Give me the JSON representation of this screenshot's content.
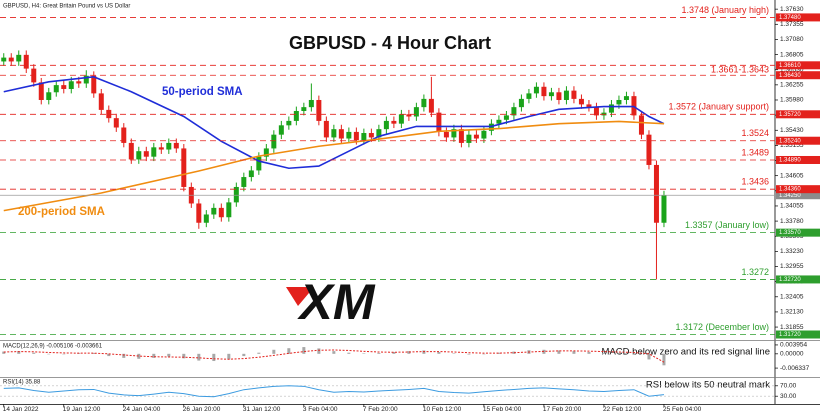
{
  "chart_data": [
    {
      "type": "candlestick",
      "info": "GBPUSD, H4:  Great Britain Pound vs US Dollar",
      "title": "GBPUSD - 4 Hour Chart",
      "logo": "XM",
      "up_color": "#1aa31a",
      "down_color": "#e3211c",
      "xlim": [
        -0.5,
        102.8
      ],
      "ylim": [
        1.3162,
        1.3776
      ],
      "yticks": [
        {
          "value": 1.3763,
          "label": "1.37630"
        },
        {
          "value": 1.37355,
          "label": "1.37355"
        },
        {
          "value": 1.3708,
          "label": "1.37080"
        },
        {
          "value": 1.36805,
          "label": "1.36805"
        },
        {
          "value": 1.3653,
          "label": "1.36530"
        },
        {
          "value": 1.36255,
          "label": "1.36255"
        },
        {
          "value": 1.3598,
          "label": "1.35980"
        },
        {
          "value": 1.35705,
          "label": "1.35705"
        },
        {
          "value": 1.3543,
          "label": "1.35430"
        },
        {
          "value": 1.35155,
          "label": "1.35155"
        },
        {
          "value": 1.3488,
          "label": "1.34880"
        },
        {
          "value": 1.34605,
          "label": "1.34605"
        },
        {
          "value": 1.3433,
          "label": "1.34330"
        },
        {
          "value": 1.34055,
          "label": "1.34055"
        },
        {
          "value": 1.3378,
          "label": "1.33780"
        },
        {
          "value": 1.33505,
          "label": "1.33505"
        },
        {
          "value": 1.3323,
          "label": "1.33230"
        },
        {
          "value": 1.32955,
          "label": "1.32955"
        },
        {
          "value": 1.3268,
          "label": "1.32680"
        },
        {
          "value": 1.32405,
          "label": "1.32405"
        },
        {
          "value": 1.3213,
          "label": "1.32130"
        },
        {
          "value": 1.31855,
          "label": "1.31855"
        }
      ],
      "open": [
        1.3668,
        1.3675,
        1.3668,
        1.368,
        1.3655,
        1.363,
        1.3598,
        1.3612,
        1.3625,
        1.3618,
        1.3632,
        1.3628,
        1.3642,
        1.361,
        1.358,
        1.3565,
        1.3548,
        1.352,
        1.349,
        1.3505,
        1.3495,
        1.3512,
        1.3508,
        1.352,
        1.351,
        1.344,
        1.341,
        1.3375,
        1.339,
        1.3402,
        1.3385,
        1.3412,
        1.344,
        1.3458,
        1.347,
        1.3495,
        1.351,
        1.3535,
        1.3552,
        1.356,
        1.3578,
        1.3585,
        1.3598,
        1.356,
        1.353,
        1.3545,
        1.3528,
        1.354,
        1.3525,
        1.3538,
        1.353,
        1.3545,
        1.356,
        1.3555,
        1.3572,
        1.3568,
        1.3585,
        1.36,
        1.3575,
        1.354,
        1.353,
        1.3545,
        1.352,
        1.3535,
        1.3528,
        1.3542,
        1.3555,
        1.3562,
        1.357,
        1.3585,
        1.36,
        1.361,
        1.3622,
        1.3605,
        1.3612,
        1.3598,
        1.3615,
        1.36,
        1.359,
        1.3585,
        1.357,
        1.3575,
        1.359,
        1.3598,
        1.3605,
        1.357,
        1.3535,
        1.348,
        1.3375
      ],
      "high": [
        1.3683,
        1.3683,
        1.3688,
        1.3688,
        1.3663,
        1.3638,
        1.362,
        1.3633,
        1.3633,
        1.364,
        1.364,
        1.3652,
        1.365,
        1.3618,
        1.3588,
        1.3573,
        1.3556,
        1.3528,
        1.3513,
        1.3513,
        1.352,
        1.352,
        1.3528,
        1.3528,
        1.3518,
        1.3448,
        1.3418,
        1.3398,
        1.341,
        1.341,
        1.342,
        1.3448,
        1.3466,
        1.3478,
        1.3503,
        1.3518,
        1.3543,
        1.356,
        1.3568,
        1.3586,
        1.3593,
        1.3628,
        1.3606,
        1.3568,
        1.3553,
        1.3553,
        1.3548,
        1.3548,
        1.3546,
        1.3546,
        1.3553,
        1.3568,
        1.3568,
        1.358,
        1.358,
        1.3593,
        1.3608,
        1.364,
        1.3583,
        1.3548,
        1.3553,
        1.3553,
        1.3543,
        1.3543,
        1.355,
        1.3563,
        1.357,
        1.3578,
        1.3593,
        1.3608,
        1.3618,
        1.363,
        1.363,
        1.362,
        1.362,
        1.3623,
        1.3623,
        1.3608,
        1.3598,
        1.3593,
        1.3583,
        1.3598,
        1.3606,
        1.3613,
        1.3613,
        1.3578,
        1.3543,
        1.3488,
        1.3433
      ],
      "low": [
        1.366,
        1.366,
        1.366,
        1.3647,
        1.3622,
        1.359,
        1.359,
        1.3604,
        1.361,
        1.361,
        1.362,
        1.362,
        1.3602,
        1.3572,
        1.3557,
        1.354,
        1.3512,
        1.3482,
        1.3482,
        1.3487,
        1.3487,
        1.35,
        1.35,
        1.3502,
        1.3432,
        1.3402,
        1.3364,
        1.3367,
        1.3382,
        1.3377,
        1.3377,
        1.3404,
        1.3432,
        1.345,
        1.3462,
        1.3487,
        1.3502,
        1.3527,
        1.3544,
        1.3552,
        1.357,
        1.3577,
        1.3552,
        1.3522,
        1.3522,
        1.352,
        1.352,
        1.3517,
        1.3517,
        1.3522,
        1.3522,
        1.3537,
        1.3547,
        1.3547,
        1.356,
        1.356,
        1.3577,
        1.3567,
        1.3532,
        1.3522,
        1.3522,
        1.3512,
        1.3512,
        1.352,
        1.352,
        1.3534,
        1.3547,
        1.3554,
        1.3562,
        1.3577,
        1.3592,
        1.3602,
        1.3597,
        1.3597,
        1.359,
        1.359,
        1.3592,
        1.3582,
        1.3577,
        1.3562,
        1.3562,
        1.3567,
        1.3582,
        1.359,
        1.3562,
        1.3527,
        1.3472,
        1.3272,
        1.3367
      ],
      "close": [
        1.3675,
        1.3668,
        1.368,
        1.3655,
        1.363,
        1.3598,
        1.3612,
        1.3625,
        1.3618,
        1.3632,
        1.3628,
        1.3642,
        1.361,
        1.358,
        1.3565,
        1.3548,
        1.352,
        1.349,
        1.3505,
        1.3495,
        1.3512,
        1.3508,
        1.352,
        1.351,
        1.344,
        1.341,
        1.3375,
        1.339,
        1.3402,
        1.3385,
        1.3412,
        1.344,
        1.3458,
        1.347,
        1.3495,
        1.351,
        1.3535,
        1.3552,
        1.356,
        1.3578,
        1.3585,
        1.3598,
        1.356,
        1.353,
        1.3545,
        1.3528,
        1.354,
        1.3525,
        1.3538,
        1.353,
        1.3545,
        1.356,
        1.3555,
        1.3572,
        1.3568,
        1.3585,
        1.36,
        1.3575,
        1.354,
        1.353,
        1.3545,
        1.352,
        1.3535,
        1.3528,
        1.3542,
        1.3555,
        1.3562,
        1.357,
        1.3585,
        1.36,
        1.361,
        1.3622,
        1.3605,
        1.3612,
        1.3598,
        1.3615,
        1.36,
        1.359,
        1.3585,
        1.357,
        1.3575,
        1.359,
        1.3598,
        1.3605,
        1.357,
        1.3535,
        1.348,
        1.3375,
        1.3425
      ],
      "series": [
        {
          "name": "50-period SMA",
          "color": "#1f2dd8",
          "x": [
            0,
            6,
            12,
            17,
            24,
            29,
            34,
            38,
            42,
            46,
            50,
            55,
            59,
            65,
            70,
            74,
            80,
            84,
            86,
            88
          ],
          "values": [
            1.3613,
            1.3631,
            1.364,
            1.3613,
            1.3568,
            1.3523,
            1.3487,
            1.3474,
            1.3478,
            1.3505,
            1.3532,
            1.355,
            1.355,
            1.355,
            1.3568,
            1.3581,
            1.3586,
            1.3586,
            1.3568,
            1.3555
          ]
        },
        {
          "name": "200-period SMA",
          "color": "#f08c10",
          "x": [
            0,
            13,
            26,
            34,
            42,
            50,
            58,
            66,
            74,
            82,
            88
          ],
          "values": [
            1.3397,
            1.3429,
            1.3469,
            1.3496,
            1.3514,
            1.3527,
            1.3541,
            1.3546,
            1.3555,
            1.3559,
            1.3555
          ]
        }
      ],
      "levels": [
        {
          "label": "1.3748 (January high)",
          "color": "#e3211c",
          "values": [
            1.3748
          ],
          "tags": [
            "1.37480"
          ]
        },
        {
          "label": "1.3661-1.3643",
          "color": "#e3211c",
          "values": [
            1.3661,
            1.3643
          ],
          "tags": [
            "1.36610",
            "1.36430"
          ]
        },
        {
          "label": "1.3572 (January support)",
          "color": "#e3211c",
          "values": [
            1.3572
          ],
          "tags": [
            "1.35720"
          ]
        },
        {
          "label": "1.3524",
          "color": "#e3211c",
          "values": [
            1.3524
          ],
          "tags": [
            "1.35240"
          ]
        },
        {
          "label": "1.3489",
          "color": "#e3211c",
          "values": [
            1.3489
          ],
          "tags": [
            "1.34890"
          ]
        },
        {
          "label": "1.3436",
          "color": "#e3211c",
          "values": [
            1.3436
          ],
          "tags": [
            "1.34360"
          ]
        },
        {
          "label": "1.3357 (January low)",
          "color": "#2e9e2e",
          "values": [
            1.3357
          ],
          "tags": [
            "1.33570"
          ]
        },
        {
          "label": "1.3272",
          "color": "#2e9e2e",
          "values": [
            1.3272
          ],
          "tags": [
            "1.32720"
          ]
        },
        {
          "label": "1.3172 (December low)",
          "color": "#2e9e2e",
          "values": [
            1.3172
          ],
          "tags": [
            "1.31720"
          ]
        }
      ],
      "last_price": {
        "value": 1.3425,
        "label": "1.34250"
      }
    },
    {
      "type": "macd",
      "label": "MACD(12,26,9) -0.005106 -0.003661",
      "note": "MACD below zero and its red signal line",
      "histogram_color": "#a8a8a8",
      "signal_color": "#e3211c",
      "xlim": [
        -0.5,
        102.8
      ],
      "ylim": [
        -0.0103,
        0.0057
      ],
      "yticks": [
        0.003954,
        {
          "value": 0,
          "label": "0.00000"
        },
        -0.006337
      ],
      "x": [
        0,
        2,
        4,
        6,
        8,
        10,
        12,
        14,
        16,
        18,
        20,
        22,
        24,
        26,
        28,
        30,
        32,
        34,
        36,
        38,
        40,
        42,
        44,
        46,
        48,
        50,
        52,
        54,
        56,
        58,
        60,
        62,
        64,
        66,
        68,
        70,
        72,
        74,
        76,
        78,
        80,
        82,
        84,
        86,
        88
      ],
      "histogram": [
        0.001,
        0.0012,
        0.0005,
        -0.0002,
        0.0,
        0.0003,
        0.0004,
        -0.001,
        -0.0018,
        -0.0022,
        -0.0018,
        -0.0012,
        -0.002,
        -0.003,
        -0.0032,
        -0.0025,
        -0.001,
        0.0005,
        0.0018,
        0.0025,
        0.003,
        0.0024,
        0.0012,
        0.0005,
        0.0002,
        0.0004,
        0.0008,
        0.0012,
        0.0015,
        0.0008,
        0.0002,
        -0.0003,
        0.0,
        0.0005,
        0.001,
        0.0016,
        0.0018,
        0.0015,
        0.0012,
        0.0008,
        0.0004,
        0.0004,
        0.0002,
        -0.0025,
        -0.0051
      ],
      "signal": [
        0.0008,
        0.001,
        0.0009,
        0.0006,
        0.0004,
        0.0003,
        0.0003,
        0.0,
        -0.0005,
        -0.001,
        -0.0013,
        -0.0014,
        -0.0015,
        -0.0018,
        -0.0022,
        -0.0024,
        -0.0021,
        -0.0015,
        -0.0007,
        0.0002,
        0.001,
        0.0016,
        0.0017,
        0.0015,
        0.0011,
        0.0008,
        0.0007,
        0.0008,
        0.001,
        0.001,
        0.0008,
        0.0005,
        0.0003,
        0.0003,
        0.0005,
        0.0008,
        0.0011,
        0.0013,
        0.0013,
        0.0012,
        0.001,
        0.0008,
        0.0006,
        0.0,
        -0.0037
      ]
    },
    {
      "type": "line",
      "label": "RSI(14) 35.88",
      "note": "RSI below its 50 neutral mark",
      "color": "#3c9be0",
      "grid": true,
      "xlim": [
        -0.5,
        102.8
      ],
      "ylim": [
        0,
        100
      ],
      "yticks": [
        {
          "value": 70,
          "label": "70.00"
        },
        {
          "value": 30,
          "label": "30.00"
        }
      ],
      "x": [
        0,
        2,
        4,
        6,
        8,
        10,
        12,
        14,
        16,
        18,
        20,
        22,
        24,
        26,
        28,
        30,
        32,
        34,
        36,
        38,
        40,
        42,
        44,
        46,
        48,
        50,
        52,
        54,
        56,
        58,
        60,
        62,
        64,
        66,
        68,
        70,
        72,
        74,
        76,
        78,
        80,
        82,
        84,
        86,
        88
      ],
      "values": [
        60,
        62,
        52,
        45,
        50,
        55,
        56,
        42,
        35,
        32,
        38,
        45,
        40,
        30,
        28,
        40,
        55,
        62,
        68,
        70,
        68,
        55,
        45,
        48,
        46,
        50,
        53,
        56,
        60,
        48,
        44,
        42,
        47,
        52,
        56,
        60,
        62,
        58,
        55,
        50,
        48,
        52,
        55,
        30,
        35.88
      ],
      "xticks": [
        {
          "value": 0,
          "label": "14 Jan 2022"
        },
        {
          "value": 8,
          "label": "19 Jan 12:00"
        },
        {
          "value": 16,
          "label": "24 Jan 04:00"
        },
        {
          "value": 24,
          "label": "26 Jan 20:00"
        },
        {
          "value": 32,
          "label": "31 Jan 12:00"
        },
        {
          "value": 40,
          "label": "3 Feb 04:00"
        },
        {
          "value": 48,
          "label": "7 Feb 20:00"
        },
        {
          "value": 56,
          "label": "10 Feb 12:00"
        },
        {
          "value": 64,
          "label": "15 Feb 04:00"
        },
        {
          "value": 72,
          "label": "17 Feb 20:00"
        },
        {
          "value": 80,
          "label": "22 Feb 12:00"
        },
        {
          "value": 88,
          "label": "25 Feb 04:00"
        }
      ]
    }
  ]
}
